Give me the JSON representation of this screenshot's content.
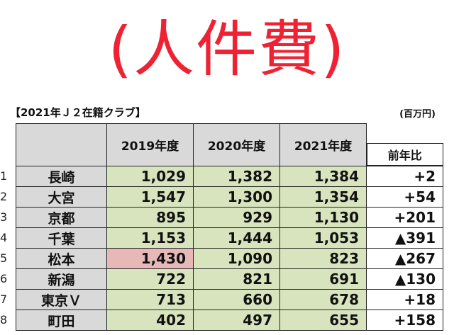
{
  "title": "(人件費)",
  "subtitle": "【2021年Ｊ２在籍クラブ】",
  "unit": "(百万円)",
  "headers": {
    "y2019": "2019年度",
    "y2020": "2020年度",
    "y2021": "2021年度",
    "diff": "前年比"
  },
  "colors": {
    "title": "#ee2233",
    "cell_green": "#d7e4bd",
    "cell_highlight": "#e6b8b7",
    "header_gray": "#d9d9d9",
    "positive": "#2233cc",
    "negative": "#dd1111"
  },
  "rows": [
    {
      "num": "1",
      "team": "長崎",
      "y2019": "1,029",
      "y2020": "1,382",
      "y2021": "1,384",
      "diff": "+2",
      "dir": "pos"
    },
    {
      "num": "2",
      "team": "大宮",
      "y2019": "1,547",
      "y2020": "1,300",
      "y2021": "1,354",
      "diff": "+54",
      "dir": "pos"
    },
    {
      "num": "3",
      "team": "京都",
      "y2019": "895",
      "y2020": "929",
      "y2021": "1,130",
      "diff": "+201",
      "dir": "pos"
    },
    {
      "num": "4",
      "team": "千葉",
      "y2019": "1,153",
      "y2020": "1,444",
      "y2021": "1,053",
      "diff": "▲391",
      "dir": "neg"
    },
    {
      "num": "5",
      "team": "松本",
      "y2019": "1,430",
      "y2020": "1,090",
      "y2021": "823",
      "diff": "▲267",
      "dir": "neg",
      "highlight2019": true
    },
    {
      "num": "6",
      "team": "新潟",
      "y2019": "722",
      "y2020": "821",
      "y2021": "691",
      "diff": "▲130",
      "dir": "neg"
    },
    {
      "num": "7",
      "team": "東京Ｖ",
      "y2019": "713",
      "y2020": "660",
      "y2021": "678",
      "diff": "+18",
      "dir": "pos"
    },
    {
      "num": "8",
      "team": "町田",
      "y2019": "402",
      "y2020": "497",
      "y2021": "655",
      "diff": "+158",
      "dir": "pos"
    }
  ]
}
